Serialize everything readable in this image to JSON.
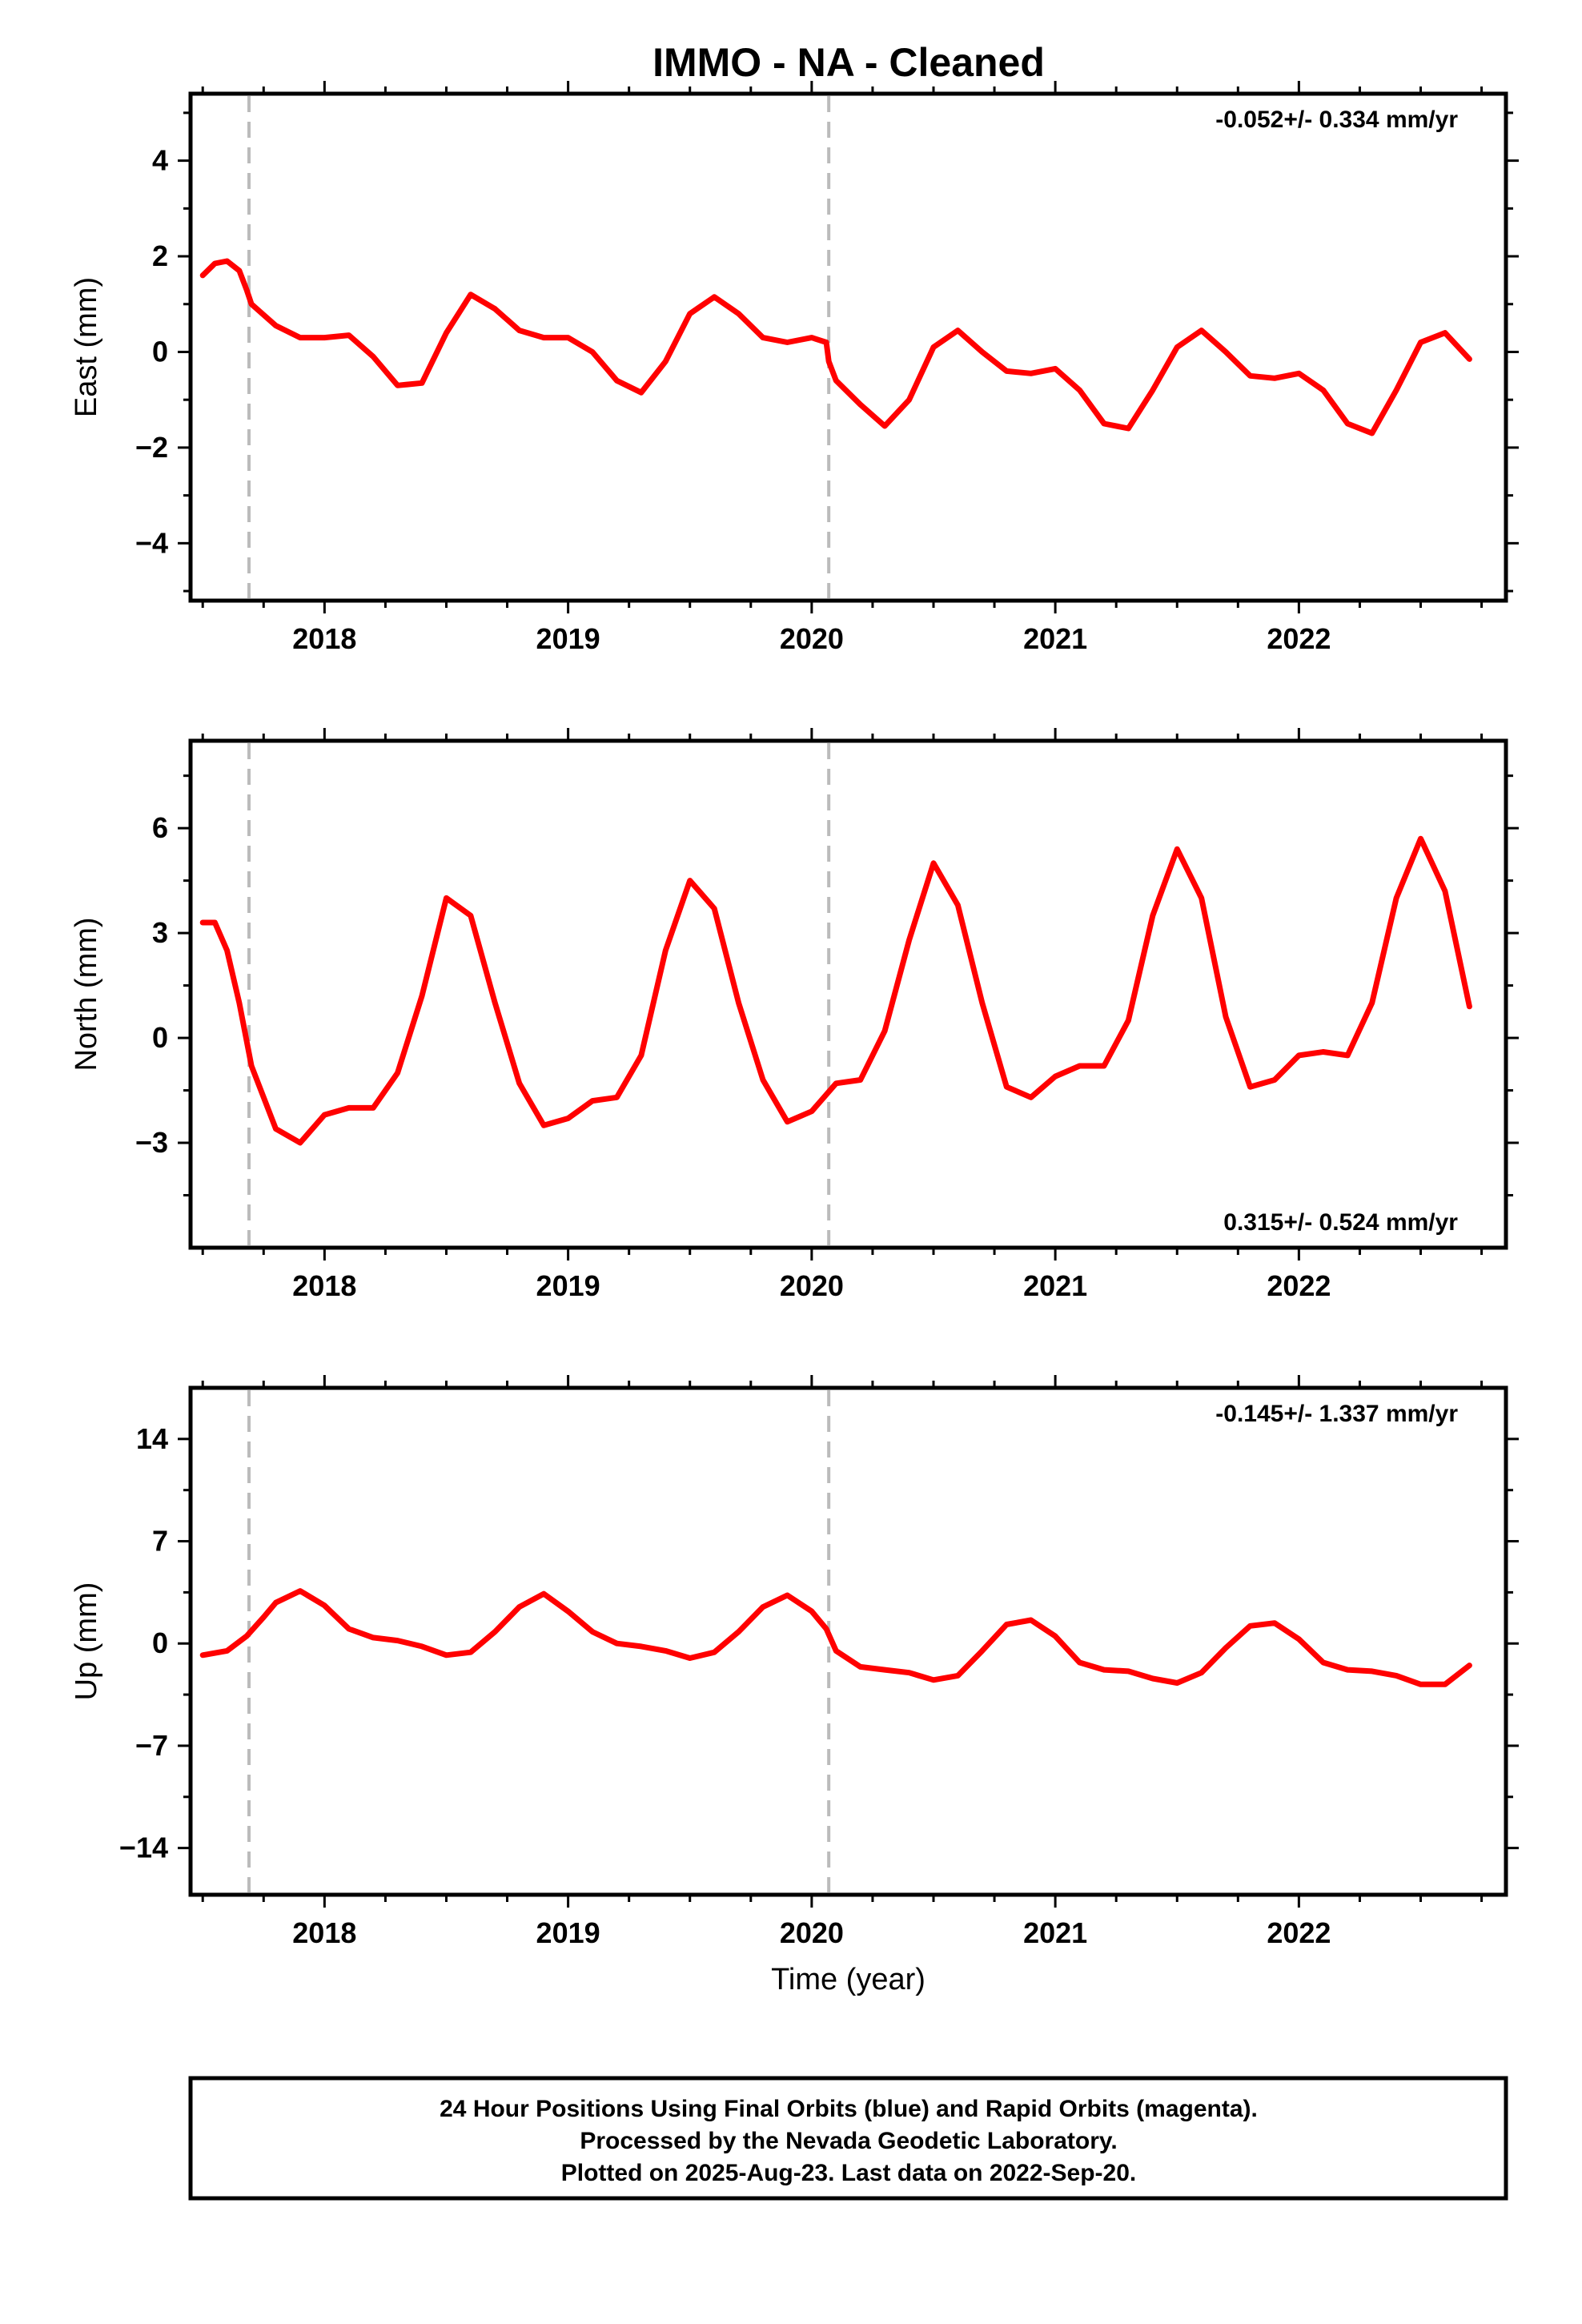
{
  "title": "IMMO  - NA - Cleaned",
  "footer": {
    "line1": "24 Hour Positions Using Final Orbits (blue) and Rapid Orbits (magenta).",
    "line2": "Processed by the Nevada Geodetic Laboratory.",
    "line3": "Plotted on 2025-Aug-23. Last data on 2022-Sep-20."
  },
  "colors": {
    "points": "#0000ff",
    "model": "#ff0000",
    "breaks": "#bbbbbb",
    "frame": "#000000"
  },
  "chart_data": [
    {
      "type": "scatter",
      "component": "east",
      "ylabel": "East (mm)",
      "xlabel": "",
      "rate_text": "-0.052+/- 0.334 mm/yr",
      "rate_position": "top-right",
      "xlim": [
        2017.45,
        2022.85
      ],
      "ylim": [
        -5.2,
        5.4
      ],
      "xticks": [
        2018,
        2019,
        2020,
        2021,
        2022
      ],
      "xtick_labels": [
        "2018",
        "2019",
        "2020",
        "2021",
        "2022"
      ],
      "yticks": [
        -4,
        -2,
        0,
        2,
        4
      ],
      "ytick_labels": [
        "−4",
        "−2",
        "0",
        "2",
        "4"
      ],
      "breaks": [
        2017.69,
        2020.07
      ],
      "series": [
        {
          "kind": "model",
          "x": [
            2017.5,
            2017.55,
            2017.6,
            2017.65,
            2017.68,
            2017.7,
            2017.8,
            2017.9,
            2018.0,
            2018.1,
            2018.2,
            2018.3,
            2018.4,
            2018.5,
            2018.6,
            2018.7,
            2018.8,
            2018.9,
            2019.0,
            2019.1,
            2019.2,
            2019.3,
            2019.4,
            2019.5,
            2019.6,
            2019.7,
            2019.8,
            2019.9,
            2020.0,
            2020.06,
            2020.07,
            2020.1,
            2020.2,
            2020.3,
            2020.4,
            2020.5,
            2020.6,
            2020.7,
            2020.8,
            2020.9,
            2021.0,
            2021.1,
            2021.2,
            2021.3,
            2021.4,
            2021.5,
            2021.6,
            2021.7,
            2021.8,
            2021.9,
            2022.0,
            2022.1,
            2022.2,
            2022.3,
            2022.4,
            2022.5,
            2022.6,
            2022.7
          ],
          "y": [
            1.6,
            1.85,
            1.9,
            1.7,
            1.3,
            1.0,
            0.55,
            0.3,
            0.3,
            0.35,
            -0.1,
            -0.7,
            -0.65,
            0.4,
            1.2,
            0.9,
            0.45,
            0.3,
            0.3,
            0.0,
            -0.6,
            -0.85,
            -0.2,
            0.8,
            1.15,
            0.8,
            0.3,
            0.2,
            0.3,
            0.2,
            -0.2,
            -0.6,
            -1.1,
            -1.55,
            -1.0,
            0.1,
            0.45,
            0.0,
            -0.4,
            -0.45,
            -0.35,
            -0.8,
            -1.5,
            -1.6,
            -0.8,
            0.1,
            0.45,
            0.0,
            -0.5,
            -0.55,
            -0.45,
            -0.8,
            -1.5,
            -1.7,
            -0.8,
            0.2,
            0.4,
            -0.15
          ]
        }
      ]
    },
    {
      "type": "scatter",
      "component": "north",
      "ylabel": "North (mm)",
      "xlabel": "",
      "rate_text": "0.315+/- 0.524 mm/yr",
      "rate_position": "bottom-right",
      "xlim": [
        2017.45,
        2022.85
      ],
      "ylim": [
        -6.0,
        8.5
      ],
      "xticks": [
        2018,
        2019,
        2020,
        2021,
        2022
      ],
      "xtick_labels": [
        "2018",
        "2019",
        "2020",
        "2021",
        "2022"
      ],
      "yticks": [
        -3,
        0,
        3,
        6
      ],
      "ytick_labels": [
        "−3",
        "0",
        "3",
        "6"
      ],
      "breaks": [
        2017.69,
        2020.07
      ],
      "series": [
        {
          "kind": "model",
          "x": [
            2017.5,
            2017.55,
            2017.6,
            2017.65,
            2017.7,
            2017.8,
            2017.9,
            2018.0,
            2018.1,
            2018.2,
            2018.3,
            2018.4,
            2018.5,
            2018.6,
            2018.7,
            2018.8,
            2018.9,
            2019.0,
            2019.1,
            2019.2,
            2019.3,
            2019.4,
            2019.5,
            2019.6,
            2019.7,
            2019.8,
            2019.9,
            2020.0,
            2020.1,
            2020.2,
            2020.3,
            2020.4,
            2020.5,
            2020.6,
            2020.7,
            2020.8,
            2020.9,
            2021.0,
            2021.1,
            2021.2,
            2021.3,
            2021.4,
            2021.5,
            2021.6,
            2021.7,
            2021.8,
            2021.9,
            2022.0,
            2022.1,
            2022.2,
            2022.3,
            2022.4,
            2022.5,
            2022.6,
            2022.7
          ],
          "y": [
            3.3,
            3.3,
            2.5,
            1.0,
            -0.8,
            -2.6,
            -3.0,
            -2.2,
            -2.0,
            -2.0,
            -1.0,
            1.2,
            4.0,
            3.5,
            1.0,
            -1.3,
            -2.5,
            -2.3,
            -1.8,
            -1.7,
            -0.5,
            2.5,
            4.5,
            3.7,
            1.0,
            -1.2,
            -2.4,
            -2.1,
            -1.3,
            -1.2,
            0.2,
            2.8,
            5.0,
            3.8,
            1.0,
            -1.4,
            -1.7,
            -1.1,
            -0.8,
            -0.8,
            0.5,
            3.5,
            5.4,
            4.0,
            0.6,
            -1.4,
            -1.2,
            -0.5,
            -0.4,
            -0.5,
            1.0,
            4.0,
            5.7,
            4.2,
            0.9
          ]
        }
      ]
    },
    {
      "type": "scatter",
      "component": "up",
      "ylabel": "Up (mm)",
      "xlabel": "Time (year)",
      "rate_text": "-0.145+/- 1.337 mm/yr",
      "rate_position": "top-right",
      "xlim": [
        2017.45,
        2022.85
      ],
      "ylim": [
        -17.2,
        17.5
      ],
      "xticks": [
        2018,
        2019,
        2020,
        2021,
        2022
      ],
      "xtick_labels": [
        "2018",
        "2019",
        "2020",
        "2021",
        "2022"
      ],
      "yticks": [
        -14,
        -7,
        0,
        7,
        14
      ],
      "ytick_labels": [
        "−14",
        "−7",
        "0",
        "7",
        "14"
      ],
      "breaks": [
        2017.69,
        2020.07
      ],
      "series": [
        {
          "kind": "model",
          "x": [
            2017.5,
            2017.6,
            2017.68,
            2017.75,
            2017.8,
            2017.9,
            2018.0,
            2018.1,
            2018.2,
            2018.3,
            2018.4,
            2018.5,
            2018.6,
            2018.7,
            2018.8,
            2018.9,
            2019.0,
            2019.1,
            2019.2,
            2019.3,
            2019.4,
            2019.5,
            2019.6,
            2019.7,
            2019.8,
            2019.9,
            2020.0,
            2020.06,
            2020.1,
            2020.2,
            2020.3,
            2020.4,
            2020.5,
            2020.6,
            2020.7,
            2020.8,
            2020.9,
            2021.0,
            2021.1,
            2021.2,
            2021.3,
            2021.4,
            2021.5,
            2021.6,
            2021.7,
            2021.8,
            2021.9,
            2022.0,
            2022.1,
            2022.2,
            2022.3,
            2022.4,
            2022.5,
            2022.6,
            2022.7
          ],
          "y": [
            -0.8,
            -0.5,
            0.5,
            1.8,
            2.8,
            3.6,
            2.6,
            1.0,
            0.4,
            0.2,
            -0.2,
            -0.8,
            -0.6,
            0.8,
            2.5,
            3.4,
            2.2,
            0.8,
            0.0,
            -0.2,
            -0.5,
            -1.0,
            -0.6,
            0.8,
            2.5,
            3.3,
            2.2,
            1.0,
            -0.5,
            -1.6,
            -1.8,
            -2.0,
            -2.5,
            -2.2,
            -0.5,
            1.3,
            1.6,
            0.5,
            -1.3,
            -1.8,
            -1.9,
            -2.4,
            -2.7,
            -2.0,
            -0.3,
            1.2,
            1.4,
            0.3,
            -1.3,
            -1.8,
            -1.9,
            -2.2,
            -2.8,
            -2.8,
            -1.5
          ]
        }
      ]
    }
  ]
}
